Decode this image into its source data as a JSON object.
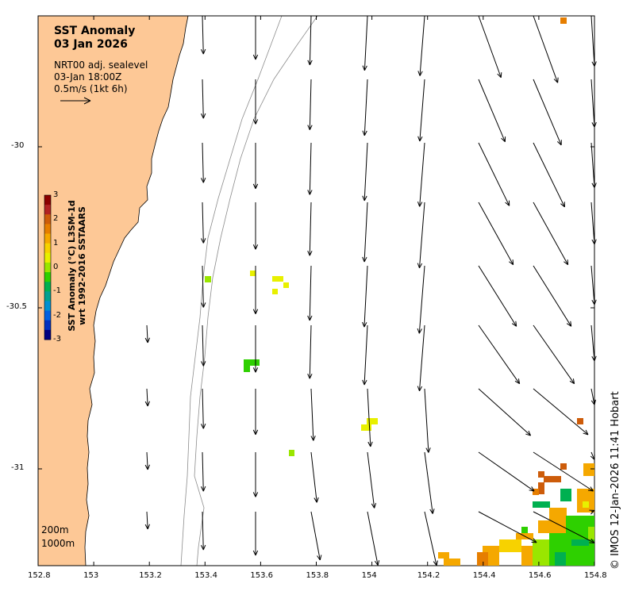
{
  "title": {
    "line1": "SST Anomaly",
    "line2": "03 Jan 2026"
  },
  "info": {
    "line1": "NRT00 adj. sealevel",
    "line2": "03-Jan 18:00Z",
    "line3": "0.5m/s (1kt 6h)"
  },
  "depth_labels": {
    "d1": "200m",
    "d2": "1000m"
  },
  "colorbar": {
    "title_line1": "SST Anomaly (°C) L3SM-1d",
    "title_line2": "wrt 1992-2016 SSTAARS",
    "ticks": [
      "3",
      "2",
      "1",
      "0",
      "-1",
      "-2",
      "-3"
    ],
    "colors": [
      "#8b0000",
      "#b22222",
      "#cd5c0a",
      "#e67e00",
      "#f5a800",
      "#f7d200",
      "#e8f000",
      "#9ae600",
      "#2ed000",
      "#00b050",
      "#00a090",
      "#0090d0",
      "#0060e0",
      "#0030c0",
      "#000080"
    ]
  },
  "credit": "© IMOS 12-Jan-2026 11:41 Hobart",
  "axes": {
    "x_ticks": [
      "152.8",
      "153",
      "153.2",
      "153.4",
      "153.6",
      "153.8",
      "154",
      "154.2",
      "154.4",
      "154.6",
      "154.8"
    ],
    "y_ticks": [
      "-30",
      "-30.5",
      "-31"
    ],
    "xlim": [
      152.8,
      154.8
    ],
    "ylim": [
      -31.3,
      -29.6
    ]
  },
  "colors": {
    "land": "#fdc896",
    "isobath": "#8c8c8c",
    "frame": "#000000"
  }
}
